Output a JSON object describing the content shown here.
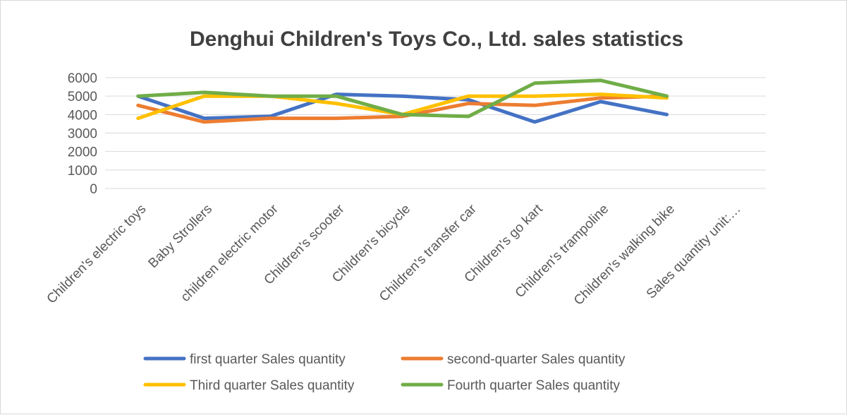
{
  "chart_data": {
    "type": "line",
    "title": "Denghui Children's Toys Co., Ltd. sales statistics",
    "xlabel": "",
    "ylabel": "",
    "ylim": [
      0,
      6000
    ],
    "yticks": [
      "0",
      "1000",
      "2000",
      "3000",
      "4000",
      "5000",
      "6000"
    ],
    "grid": true,
    "legend_position": "bottom",
    "categories": [
      "Children's electric toys",
      "Baby Strollers",
      "children electric motor",
      "Children's scooter",
      "Children's bicycle",
      "Children's transfer car",
      "Children's go kart",
      "Children's trampoline",
      "Children's walking bike",
      "Sales quantity unit:…"
    ],
    "series": [
      {
        "name": "first quarter Sales quantity",
        "color": "#4472C4",
        "values": [
          5000,
          3800,
          3900,
          5100,
          5000,
          4800,
          3600,
          4700,
          4000,
          null
        ]
      },
      {
        "name": "second-quarter Sales quantity",
        "color": "#ED7D31",
        "values": [
          4500,
          3600,
          3800,
          3800,
          3900,
          4600,
          4500,
          4900,
          5000,
          null
        ]
      },
      {
        "name": "Third quarter Sales quantity",
        "color": "#FFC000",
        "values": [
          3800,
          5000,
          5000,
          4600,
          4000,
          5000,
          5000,
          5100,
          4900,
          null
        ]
      },
      {
        "name": "Fourth quarter Sales quantity",
        "color": "#70AD47",
        "values": [
          5000,
          5200,
          5000,
          5000,
          4000,
          3900,
          5700,
          5850,
          5000,
          null
        ]
      }
    ]
  }
}
